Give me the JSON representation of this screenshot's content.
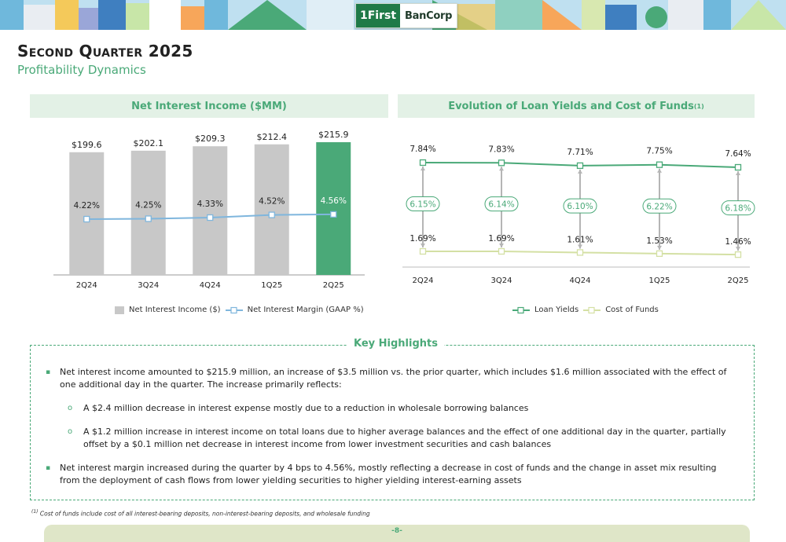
{
  "header": {
    "logo_mark": "1First",
    "logo_text": "BanCorp",
    "title": "Second Quarter 2025",
    "subtitle": "Profitability Dynamics"
  },
  "left_panel": {
    "heading": "Net Interest Income ($MM)",
    "legend": [
      "Net Interest Income ($)",
      "Net Interest Margin (GAAP %)"
    ]
  },
  "right_panel": {
    "heading": "Evolution of Loan Yields and Cost of Funds",
    "heading_sup": "(1)",
    "legend": [
      "Loan Yields",
      "Cost of Funds"
    ]
  },
  "chart_data": [
    {
      "type": "bar",
      "categories": [
        "2Q24",
        "3Q24",
        "4Q24",
        "1Q25",
        "2Q25"
      ],
      "series": [
        {
          "name": "Net Interest Income ($)",
          "values": [
            199.6,
            202.1,
            209.3,
            212.4,
            215.9
          ],
          "labels": [
            "$199.6",
            "$202.1",
            "$209.3",
            "$212.4",
            "$215.9"
          ]
        },
        {
          "name": "Net Interest Margin (GAAP %)",
          "type": "line",
          "values": [
            4.22,
            4.25,
            4.33,
            4.52,
            4.56
          ],
          "labels": [
            "4.22%",
            "4.25%",
            "4.33%",
            "4.52%",
            "4.56%"
          ]
        }
      ],
      "ylim": [
        0,
        230
      ],
      "bar_color": "#c8c8c8",
      "highlight_color": "#4aa978",
      "line_color": "#7fb6dd",
      "grid": false,
      "legend_position": "bottom"
    },
    {
      "type": "line",
      "categories": [
        "2Q24",
        "3Q24",
        "4Q24",
        "1Q25",
        "2Q25"
      ],
      "series": [
        {
          "name": "Loan Yields",
          "values": [
            7.84,
            7.83,
            7.71,
            7.75,
            7.64
          ],
          "labels": [
            "7.84%",
            "7.83%",
            "7.71%",
            "7.75%",
            "7.64%"
          ],
          "color": "#4aa978"
        },
        {
          "name": "Cost of Funds",
          "values": [
            1.69,
            1.69,
            1.61,
            1.53,
            1.46
          ],
          "labels": [
            "1.69%",
            "1.69%",
            "1.61%",
            "1.53%",
            "1.46%"
          ],
          "color": "#d4e0a4"
        }
      ],
      "spreads": [
        "6.15%",
        "6.14%",
        "6.10%",
        "6.22%",
        "6.18%"
      ],
      "grid": false,
      "legend_position": "bottom"
    }
  ],
  "key_highlights": {
    "title": "Key Highlights",
    "bullets": [
      {
        "level": 1,
        "text": "Net interest income amounted to $215.9 million, an increase of $3.5 million vs. the prior quarter, which includes $1.6 million associated with the effect of one additional day in the quarter. The increase primarily reflects:"
      },
      {
        "level": 2,
        "text": "A $2.4 million decrease in interest expense mostly due to a reduction in wholesale borrowing balances"
      },
      {
        "level": 2,
        "text": "A $1.2 million increase in interest income on total loans due to higher average balances and the effect of one additional day in the quarter, partially offset by a $0.1 million net decrease in interest income from lower investment securities and cash balances"
      },
      {
        "level": 1,
        "text": "Net interest margin increased during the quarter by 4 bps to 4.56%, mostly reflecting a decrease in cost of funds and the change in asset mix resulting from the deployment of cash flows from lower yielding securities to higher yielding interest-earning assets"
      }
    ]
  },
  "footnote": {
    "mark": "(1)",
    "text": "Cost of funds include cost of all interest-bearing deposits, non-interest-bearing deposits, and wholesale funding"
  },
  "page_number": "-8-"
}
